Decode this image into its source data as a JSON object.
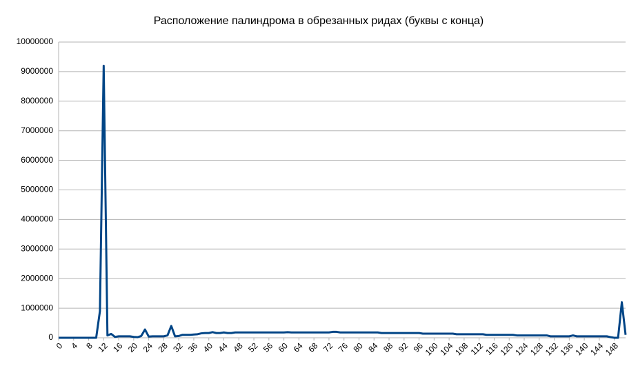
{
  "chart_data": {
    "type": "line",
    "title": "Расположение палиндрома в обрезанных ридах (буквы с конца)",
    "x": [
      0,
      1,
      2,
      3,
      4,
      5,
      6,
      7,
      8,
      9,
      10,
      11,
      12,
      13,
      14,
      15,
      16,
      17,
      18,
      19,
      20,
      21,
      22,
      23,
      24,
      25,
      26,
      27,
      28,
      29,
      30,
      31,
      32,
      33,
      34,
      35,
      36,
      37,
      38,
      39,
      40,
      41,
      42,
      43,
      44,
      45,
      46,
      47,
      48,
      49,
      50,
      51,
      52,
      53,
      54,
      55,
      56,
      57,
      58,
      59,
      60,
      61,
      62,
      63,
      64,
      65,
      66,
      67,
      68,
      69,
      70,
      71,
      72,
      73,
      74,
      75,
      76,
      77,
      78,
      79,
      80,
      81,
      82,
      83,
      84,
      85,
      86,
      87,
      88,
      89,
      90,
      91,
      92,
      93,
      94,
      95,
      96,
      97,
      98,
      99,
      100,
      101,
      102,
      103,
      104,
      105,
      106,
      107,
      108,
      109,
      110,
      111,
      112,
      113,
      114,
      115,
      116,
      117,
      118,
      119,
      120,
      121,
      122,
      123,
      124,
      125,
      126,
      127,
      128,
      129,
      130,
      131,
      132,
      133,
      134,
      135,
      136,
      137,
      138,
      139,
      140,
      141,
      142,
      143,
      144,
      145,
      146,
      147,
      148,
      149,
      150,
      151
    ],
    "series": [
      {
        "color": "#004586",
        "values": [
          0,
          0,
          0,
          0,
          0,
          0,
          0,
          0,
          0,
          0,
          0,
          900000,
          9200000,
          80000,
          130000,
          30000,
          50000,
          50000,
          50000,
          50000,
          30000,
          20000,
          60000,
          280000,
          40000,
          50000,
          50000,
          50000,
          50000,
          80000,
          400000,
          50000,
          60000,
          100000,
          100000,
          100000,
          110000,
          120000,
          150000,
          160000,
          160000,
          190000,
          160000,
          160000,
          180000,
          160000,
          160000,
          180000,
          180000,
          180000,
          180000,
          180000,
          180000,
          180000,
          180000,
          180000,
          180000,
          180000,
          180000,
          180000,
          180000,
          190000,
          180000,
          180000,
          180000,
          180000,
          180000,
          180000,
          180000,
          180000,
          180000,
          180000,
          180000,
          200000,
          200000,
          180000,
          180000,
          180000,
          180000,
          180000,
          180000,
          180000,
          180000,
          180000,
          180000,
          180000,
          160000,
          160000,
          160000,
          160000,
          160000,
          160000,
          160000,
          160000,
          160000,
          160000,
          160000,
          140000,
          140000,
          140000,
          140000,
          140000,
          140000,
          140000,
          140000,
          140000,
          120000,
          120000,
          120000,
          120000,
          120000,
          120000,
          120000,
          120000,
          100000,
          100000,
          100000,
          100000,
          100000,
          100000,
          100000,
          100000,
          80000,
          80000,
          80000,
          80000,
          80000,
          80000,
          80000,
          80000,
          80000,
          50000,
          50000,
          50000,
          50000,
          50000,
          50000,
          80000,
          50000,
          50000,
          50000,
          50000,
          50000,
          50000,
          50000,
          50000,
          50000,
          20000,
          0,
          0,
          1200000,
          100000
        ]
      }
    ],
    "xlim": [
      0,
      151
    ],
    "xticks": [
      0,
      4,
      8,
      12,
      16,
      20,
      24,
      28,
      32,
      36,
      40,
      44,
      48,
      52,
      56,
      60,
      64,
      68,
      72,
      76,
      80,
      84,
      88,
      92,
      96,
      100,
      104,
      108,
      112,
      116,
      120,
      124,
      128,
      132,
      136,
      140,
      144,
      148
    ],
    "ylim": [
      0,
      10000000
    ],
    "yticks": [
      0,
      1000000,
      2000000,
      3000000,
      4000000,
      5000000,
      6000000,
      7000000,
      8000000,
      9000000,
      10000000
    ],
    "grid": true
  }
}
